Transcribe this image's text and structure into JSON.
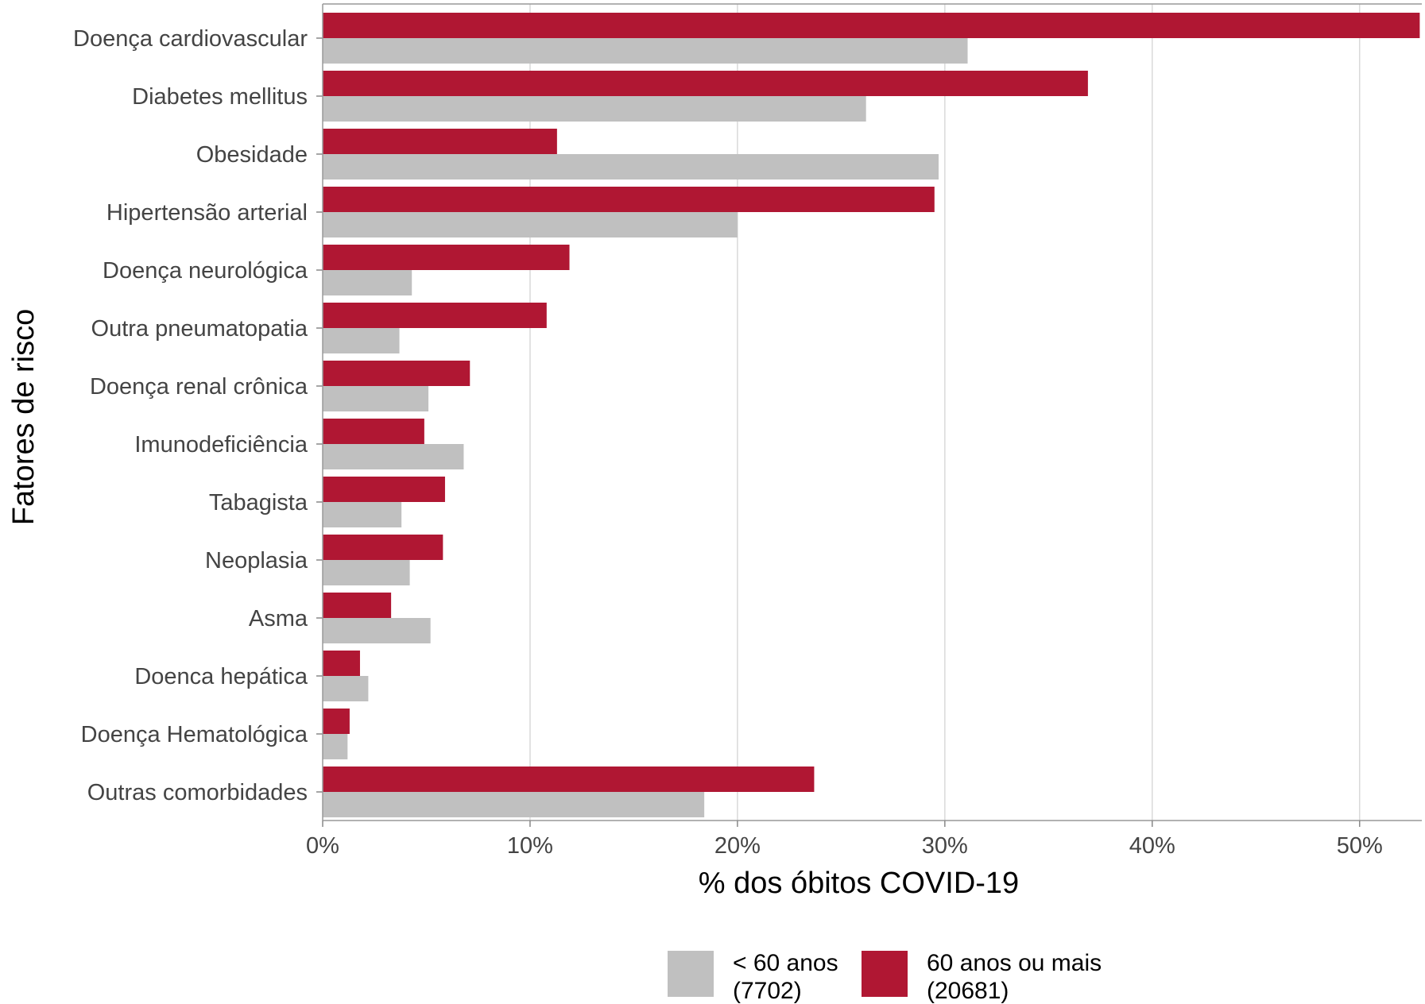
{
  "chart_data": {
    "type": "bar",
    "orientation": "horizontal",
    "xlabel": "% dos óbitos COVID-19",
    "ylabel": "Fatores de risco",
    "xlim": [
      0,
      53
    ],
    "x_ticks": [
      0,
      10,
      20,
      30,
      40,
      50
    ],
    "x_tick_labels": [
      "0%",
      "10%",
      "20%",
      "30%",
      "40%",
      "50%"
    ],
    "grid": "vertical",
    "legend_position": "bottom",
    "categories": [
      "Doença cardiovascular",
      "Diabetes mellitus",
      "Obesidade",
      "Hipertensão arterial",
      "Doença neurológica",
      "Outra pneumatopatia",
      "Doença renal crônica",
      "Imunodeficiência",
      "Tabagista",
      "Neoplasia",
      "Asma",
      "Doenca hepática",
      "Doença Hematológica",
      "Outras comorbidades"
    ],
    "series": [
      {
        "name": "< 60 anos",
        "legend_count": "(7702)",
        "color": "#c0c0c0",
        "values": [
          31.1,
          26.2,
          29.7,
          20.0,
          4.3,
          3.7,
          5.1,
          6.8,
          3.8,
          4.2,
          5.2,
          2.2,
          1.2,
          18.4
        ]
      },
      {
        "name": "60 anos ou mais",
        "legend_count": "(20681)",
        "color": "#b01733",
        "values": [
          52.9,
          36.9,
          11.3,
          29.5,
          11.9,
          10.8,
          7.1,
          4.9,
          5.9,
          5.8,
          3.3,
          1.8,
          1.3,
          23.7
        ]
      }
    ]
  }
}
